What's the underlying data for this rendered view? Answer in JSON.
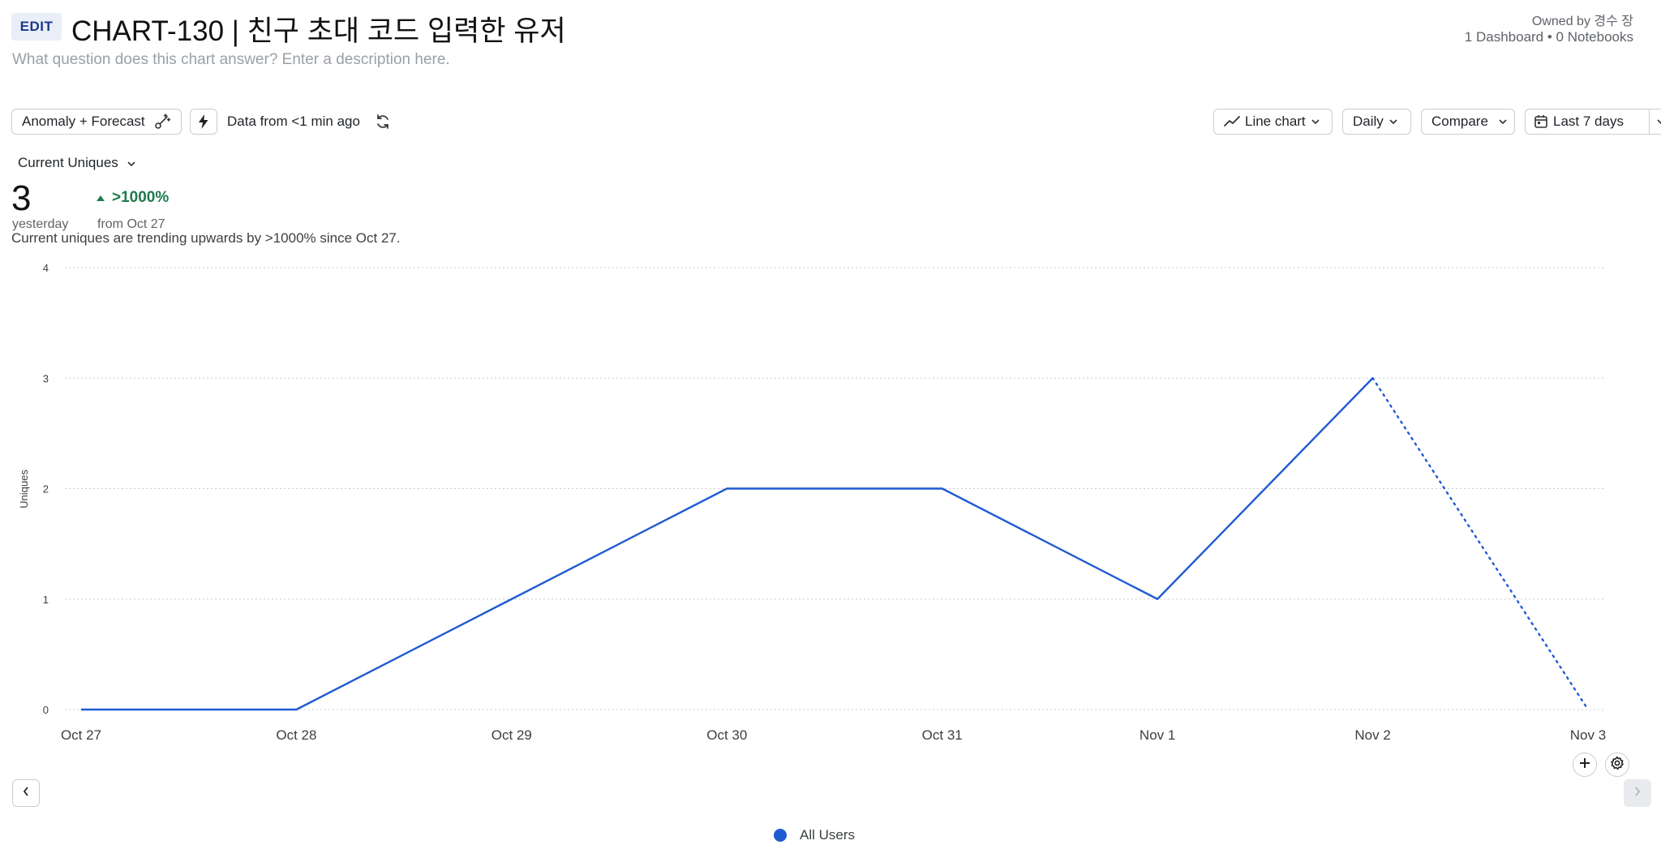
{
  "header": {
    "edit_label": "EDIT",
    "title": "CHART-130 | 친구 초대 코드 입력한 유저",
    "description_placeholder": "What question does this chart answer? Enter a description here.",
    "owner": "Owned by 경수 장",
    "meta": "1 Dashboard • 0 Notebooks"
  },
  "toolbar": {
    "anomaly_label": "Anomaly + Forecast",
    "data_freshness": "Data from <1 min ago",
    "chart_type": "Line chart",
    "interval": "Daily",
    "compare": "Compare",
    "date_range": "Last 7 days"
  },
  "summary": {
    "metric": "Current Uniques",
    "value": "3",
    "value_caption": "yesterday",
    "change": ">1000%",
    "change_caption": "from Oct 27",
    "trend_note": "Current uniques are trending upwards by >1000% since Oct 27."
  },
  "icons": {
    "anomaly": "magic-wand-icon",
    "bolt": "lightning-bolt-icon",
    "refresh": "refresh-icon",
    "chart_type": "line-chart-icon",
    "calendar": "calendar-icon",
    "plus": "plus-icon",
    "gear": "gear-icon"
  },
  "colors": {
    "series": "#1f5ad1",
    "positive": "#1e7b4a"
  },
  "chart_data": {
    "type": "line",
    "ylabel": "Uniques",
    "xlabel": "",
    "categories": [
      "Oct 27",
      "Oct 28",
      "Oct 29",
      "Oct 30",
      "Oct 31",
      "Nov 1",
      "Nov 2",
      "Nov 3"
    ],
    "ylim": [
      0,
      4
    ],
    "yticks": [
      0,
      1,
      2,
      3,
      4
    ],
    "series": [
      {
        "name": "All Users",
        "values": [
          0,
          0,
          1,
          2,
          2,
          1,
          3,
          0
        ],
        "incomplete_from_index": 6
      }
    ],
    "grid": true,
    "legend_position": "bottom-center"
  }
}
